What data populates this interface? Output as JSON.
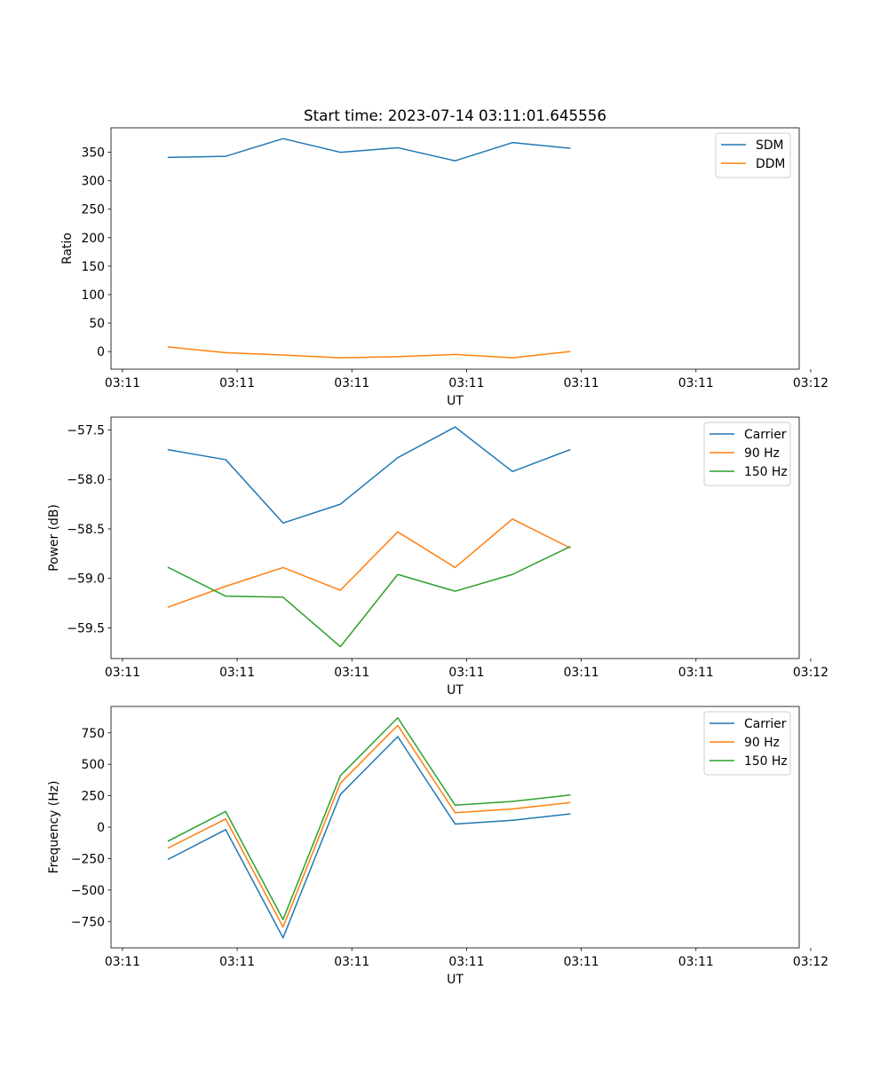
{
  "chart_data": [
    {
      "type": "line",
      "title": "Start time: 2023-07-14 03:11:01.645556",
      "xlabel": "UT",
      "ylabel": "Ratio",
      "xlim": [
        0,
        12
      ],
      "x": [
        1,
        2,
        3,
        4,
        5,
        6,
        7,
        8
      ],
      "xtick_values": [
        0.2,
        2.2,
        4.2,
        6.2,
        8.2,
        10.2,
        12.2
      ],
      "xtick_labels": [
        "03:11",
        "03:11",
        "03:11",
        "03:11",
        "03:11",
        "03:11",
        "03:12"
      ],
      "ylim": [
        -31,
        393
      ],
      "yticks": [
        0,
        50,
        100,
        150,
        200,
        250,
        300,
        350
      ],
      "ytick_labels": [
        "0",
        "50",
        "100",
        "150",
        "200",
        "250",
        "300",
        "350"
      ],
      "legend_position": "top-right",
      "series": [
        {
          "name": "SDM",
          "color": "#1f77b4",
          "values": [
            341,
            343,
            374,
            350,
            358,
            335,
            367,
            357
          ]
        },
        {
          "name": "DDM",
          "color": "#ff7f0e",
          "values": [
            8,
            -2,
            -6,
            -11,
            -9,
            -5,
            -11,
            0
          ]
        }
      ]
    },
    {
      "type": "line",
      "title": "",
      "xlabel": "UT",
      "ylabel": "Power (dB)",
      "xlim": [
        0,
        12
      ],
      "x": [
        1,
        2,
        3,
        4,
        5,
        6,
        7,
        8
      ],
      "xtick_values": [
        0.2,
        2.2,
        4.2,
        6.2,
        8.2,
        10.2,
        12.2
      ],
      "xtick_labels": [
        "03:11",
        "03:11",
        "03:11",
        "03:11",
        "03:11",
        "03:11",
        "03:12"
      ],
      "ylim": [
        -59.81,
        -57.37
      ],
      "yticks": [
        -59.5,
        -59.0,
        -58.5,
        -58.0,
        -57.5
      ],
      "ytick_labels": [
        "−59.5",
        "−59.0",
        "−58.5",
        "−58.0",
        "−57.5"
      ],
      "legend_position": "top-right",
      "series": [
        {
          "name": "Carrier",
          "color": "#1f77b4",
          "values": [
            -57.7,
            -57.8,
            -58.44,
            -58.25,
            -57.78,
            -57.47,
            -57.92,
            -57.7
          ]
        },
        {
          "name": "90 Hz",
          "color": "#ff7f0e",
          "values": [
            -59.29,
            -59.08,
            -58.89,
            -59.12,
            -58.53,
            -58.89,
            -58.4,
            -58.69
          ]
        },
        {
          "name": "150 Hz",
          "color": "#2ca02c",
          "values": [
            -58.89,
            -59.18,
            -59.19,
            -59.69,
            -58.96,
            -59.13,
            -58.96,
            -58.68
          ]
        }
      ]
    },
    {
      "type": "line",
      "title": "",
      "xlabel": "UT",
      "ylabel": "Frequency (Hz)",
      "xlim": [
        0,
        12
      ],
      "x": [
        1,
        2,
        3,
        4,
        5,
        6,
        7,
        8
      ],
      "xtick_values": [
        0.2,
        2.2,
        4.2,
        6.2,
        8.2,
        10.2,
        12.2
      ],
      "xtick_labels": [
        "03:11",
        "03:11",
        "03:11",
        "03:11",
        "03:11",
        "03:11",
        "03:12"
      ],
      "ylim": [
        -960,
        960
      ],
      "yticks": [
        -750,
        -500,
        -250,
        0,
        250,
        500,
        750
      ],
      "ytick_labels": [
        "−750",
        "−500",
        "−250",
        "0",
        "250",
        "500",
        "750"
      ],
      "legend_position": "top-right",
      "series": [
        {
          "name": "Carrier",
          "color": "#1f77b4",
          "values": [
            -255,
            -20,
            -880,
            260,
            720,
            25,
            55,
            105
          ]
        },
        {
          "name": "90 Hz",
          "color": "#ff7f0e",
          "values": [
            -165,
            65,
            -795,
            350,
            810,
            115,
            145,
            195
          ]
        },
        {
          "name": "150 Hz",
          "color": "#2ca02c",
          "values": [
            -110,
            125,
            -735,
            410,
            870,
            175,
            205,
            255
          ]
        }
      ]
    }
  ]
}
